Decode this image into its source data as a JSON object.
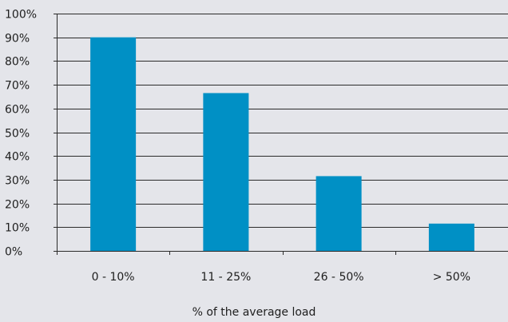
{
  "chart_data": {
    "type": "bar",
    "categories": [
      "0 - 10%",
      "11 - 25%",
      "26 - 50%",
      "> 50%"
    ],
    "values": [
      90,
      66.5,
      31.5,
      11.5
    ],
    "xlabel": "% of the average load",
    "ylabel": "",
    "ylim": [
      0,
      100
    ],
    "yticks": [
      0,
      10,
      20,
      30,
      40,
      50,
      60,
      70,
      80,
      90,
      100
    ],
    "ytick_labels": [
      "0%",
      "10%",
      "20%",
      "30%",
      "40%",
      "50%",
      "60%",
      "70%",
      "80%",
      "90%",
      "100%"
    ],
    "grid": true,
    "legend": "none",
    "colors": {
      "bar": "#0090c5",
      "grid": "#2b2b2b",
      "background": "#e4e5ea",
      "text": "#1e1e1e"
    }
  }
}
